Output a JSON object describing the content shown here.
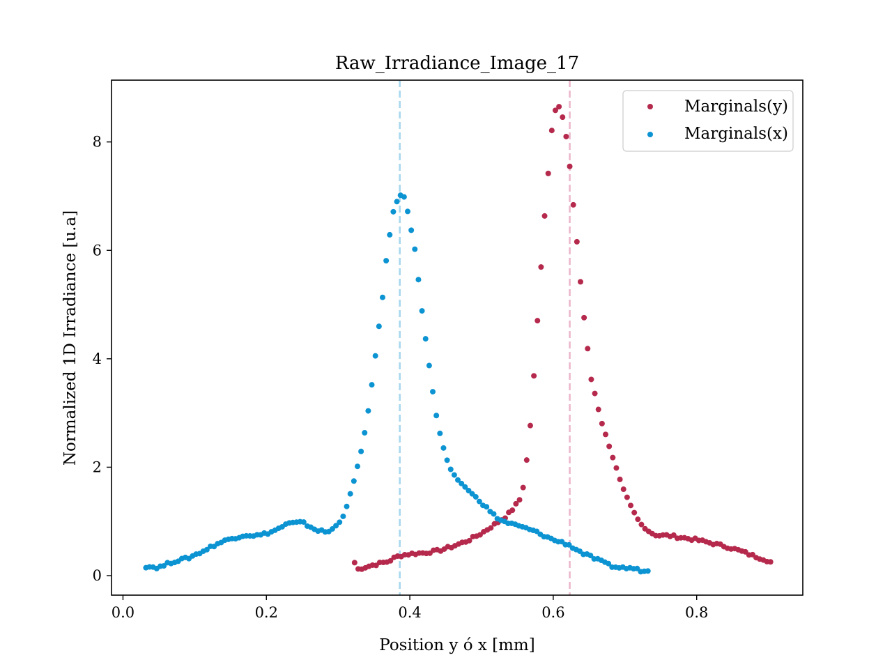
{
  "chart_data": {
    "type": "scatter",
    "title": "Raw_Irradiance_Image_17",
    "xlabel": "Position y ó x [mm]",
    "ylabel": "Normalized 1D Irradiance [u.a]",
    "xlim": [
      -0.016,
      0.948
    ],
    "ylim": [
      -0.36,
      9.14
    ],
    "xticks": [
      0.0,
      0.2,
      0.4,
      0.6,
      0.8
    ],
    "xtick_labels": [
      "0.0",
      "0.2",
      "0.4",
      "0.6",
      "0.8"
    ],
    "yticks": [
      0,
      2,
      4,
      6,
      8
    ],
    "ytick_labels": [
      "0",
      "2",
      "4",
      "6",
      "8"
    ],
    "grid": false,
    "legend_position": "upper right",
    "vlines": [
      {
        "x": 0.386,
        "color": "#a8d8ef",
        "style": "dashed"
      },
      {
        "x": 0.623,
        "color": "#ecb8cb",
        "style": "dashed"
      }
    ],
    "series": [
      {
        "name": "Marginals(y)",
        "color": "#b5294c",
        "x_range": [
          0.323,
          0.905
        ],
        "points": [
          [
            0.328,
            0.12
          ],
          [
            0.35,
            0.2
          ],
          [
            0.37,
            0.26
          ],
          [
            0.38,
            0.34
          ],
          [
            0.39,
            0.38
          ],
          [
            0.4,
            0.4
          ],
          [
            0.42,
            0.42
          ],
          [
            0.44,
            0.46
          ],
          [
            0.46,
            0.54
          ],
          [
            0.48,
            0.64
          ],
          [
            0.5,
            0.78
          ],
          [
            0.52,
            0.96
          ],
          [
            0.535,
            1.1
          ],
          [
            0.545,
            1.25
          ],
          [
            0.553,
            1.4
          ],
          [
            0.558,
            1.63
          ],
          [
            0.562,
            2.02
          ],
          [
            0.566,
            2.46
          ],
          [
            0.57,
            3.08
          ],
          [
            0.574,
            3.88
          ],
          [
            0.578,
            4.7
          ],
          [
            0.583,
            5.7
          ],
          [
            0.588,
            6.64
          ],
          [
            0.593,
            7.42
          ],
          [
            0.597,
            8.12
          ],
          [
            0.601,
            8.52
          ],
          [
            0.606,
            8.7
          ],
          [
            0.611,
            8.58
          ],
          [
            0.617,
            8.2
          ],
          [
            0.622,
            7.68
          ],
          [
            0.627,
            6.98
          ],
          [
            0.633,
            6.16
          ],
          [
            0.638,
            5.42
          ],
          [
            0.643,
            4.76
          ],
          [
            0.648,
            4.18
          ],
          [
            0.653,
            3.62
          ],
          [
            0.659,
            3.31
          ],
          [
            0.664,
            3.01
          ],
          [
            0.669,
            2.76
          ],
          [
            0.674,
            2.56
          ],
          [
            0.679,
            2.35
          ],
          [
            0.684,
            2.14
          ],
          [
            0.69,
            1.9
          ],
          [
            0.695,
            1.68
          ],
          [
            0.7,
            1.52
          ],
          [
            0.705,
            1.36
          ],
          [
            0.71,
            1.22
          ],
          [
            0.716,
            1.08
          ],
          [
            0.721,
            0.96
          ],
          [
            0.727,
            0.9
          ],
          [
            0.735,
            0.8
          ],
          [
            0.745,
            0.74
          ],
          [
            0.76,
            0.74
          ],
          [
            0.78,
            0.7
          ],
          [
            0.8,
            0.66
          ],
          [
            0.82,
            0.6
          ],
          [
            0.84,
            0.54
          ],
          [
            0.86,
            0.46
          ],
          [
            0.88,
            0.36
          ],
          [
            0.895,
            0.3
          ],
          [
            0.905,
            0.24
          ]
        ]
      },
      {
        "name": "Marginals(x)",
        "color": "#0c93d2",
        "x_range": [
          0.032,
          0.736
        ],
        "points": [
          [
            0.032,
            0.17
          ],
          [
            0.05,
            0.15
          ],
          [
            0.07,
            0.26
          ],
          [
            0.09,
            0.32
          ],
          [
            0.11,
            0.44
          ],
          [
            0.13,
            0.58
          ],
          [
            0.15,
            0.68
          ],
          [
            0.17,
            0.75
          ],
          [
            0.19,
            0.74
          ],
          [
            0.21,
            0.82
          ],
          [
            0.23,
            0.96
          ],
          [
            0.25,
            0.98
          ],
          [
            0.27,
            0.84
          ],
          [
            0.285,
            0.8
          ],
          [
            0.295,
            0.88
          ],
          [
            0.302,
            1.0
          ],
          [
            0.308,
            1.14
          ],
          [
            0.314,
            1.36
          ],
          [
            0.32,
            1.64
          ],
          [
            0.326,
            1.95
          ],
          [
            0.332,
            2.3
          ],
          [
            0.338,
            2.7
          ],
          [
            0.344,
            3.2
          ],
          [
            0.35,
            3.82
          ],
          [
            0.355,
            4.4
          ],
          [
            0.361,
            5.0
          ],
          [
            0.366,
            5.7
          ],
          [
            0.371,
            6.2
          ],
          [
            0.376,
            6.66
          ],
          [
            0.381,
            6.88
          ],
          [
            0.386,
            7.02
          ],
          [
            0.392,
            6.98
          ],
          [
            0.397,
            6.72
          ],
          [
            0.402,
            6.38
          ],
          [
            0.408,
            5.96
          ],
          [
            0.413,
            5.34
          ],
          [
            0.418,
            4.76
          ],
          [
            0.424,
            4.18
          ],
          [
            0.429,
            3.68
          ],
          [
            0.434,
            3.2
          ],
          [
            0.439,
            2.78
          ],
          [
            0.445,
            2.46
          ],
          [
            0.45,
            2.2
          ],
          [
            0.455,
            2.0
          ],
          [
            0.46,
            1.88
          ],
          [
            0.466,
            1.78
          ],
          [
            0.472,
            1.7
          ],
          [
            0.478,
            1.62
          ],
          [
            0.484,
            1.55
          ],
          [
            0.49,
            1.46
          ],
          [
            0.496,
            1.4
          ],
          [
            0.502,
            1.32
          ],
          [
            0.508,
            1.24
          ],
          [
            0.514,
            1.16
          ],
          [
            0.52,
            1.08
          ],
          [
            0.53,
            1.0
          ],
          [
            0.54,
            0.96
          ],
          [
            0.55,
            0.92
          ],
          [
            0.56,
            0.88
          ],
          [
            0.57,
            0.84
          ],
          [
            0.58,
            0.78
          ],
          [
            0.59,
            0.72
          ],
          [
            0.6,
            0.66
          ],
          [
            0.61,
            0.62
          ],
          [
            0.62,
            0.58
          ],
          [
            0.63,
            0.5
          ],
          [
            0.64,
            0.42
          ],
          [
            0.65,
            0.36
          ],
          [
            0.66,
            0.3
          ],
          [
            0.67,
            0.24
          ],
          [
            0.68,
            0.18
          ],
          [
            0.69,
            0.15
          ],
          [
            0.7,
            0.14
          ],
          [
            0.71,
            0.14
          ],
          [
            0.72,
            0.1
          ],
          [
            0.736,
            0.07
          ]
        ]
      }
    ]
  }
}
